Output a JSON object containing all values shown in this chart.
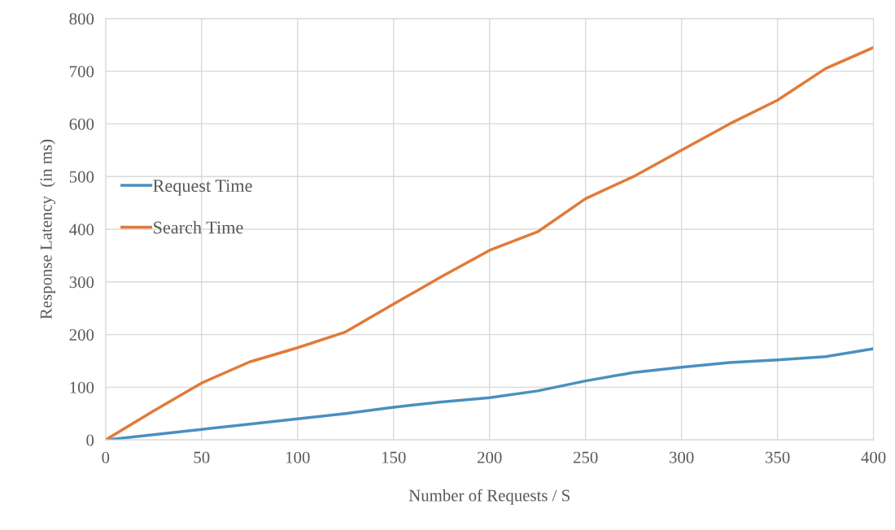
{
  "chart_data": {
    "type": "line",
    "xlabel": "Number of Requests / S",
    "ylabel": "Response Latency  (in ms)",
    "x": [
      0,
      25,
      50,
      75,
      100,
      125,
      150,
      175,
      200,
      225,
      250,
      275,
      300,
      325,
      350,
      375,
      400
    ],
    "series": [
      {
        "name": "Request Time",
        "color": "#4a90bd",
        "values": [
          0,
          10,
          20,
          30,
          40,
          50,
          62,
          72,
          80,
          93,
          112,
          128,
          138,
          147,
          152,
          158,
          173
        ]
      },
      {
        "name": "Search Time",
        "color": "#e07b39",
        "values": [
          0,
          55,
          108,
          148,
          175,
          205,
          258,
          310,
          360,
          395,
          458,
          500,
          550,
          600,
          645,
          705,
          745
        ]
      }
    ],
    "xlim": [
      0,
      400
    ],
    "xticks": [
      0,
      50,
      100,
      150,
      200,
      250,
      300,
      350,
      400
    ],
    "ylim": [
      0,
      800
    ],
    "yticks": [
      0,
      100,
      200,
      300,
      400,
      500,
      600,
      700,
      800
    ],
    "grid": true,
    "legend": "left",
    "marker": "none",
    "line_style": "solid"
  }
}
